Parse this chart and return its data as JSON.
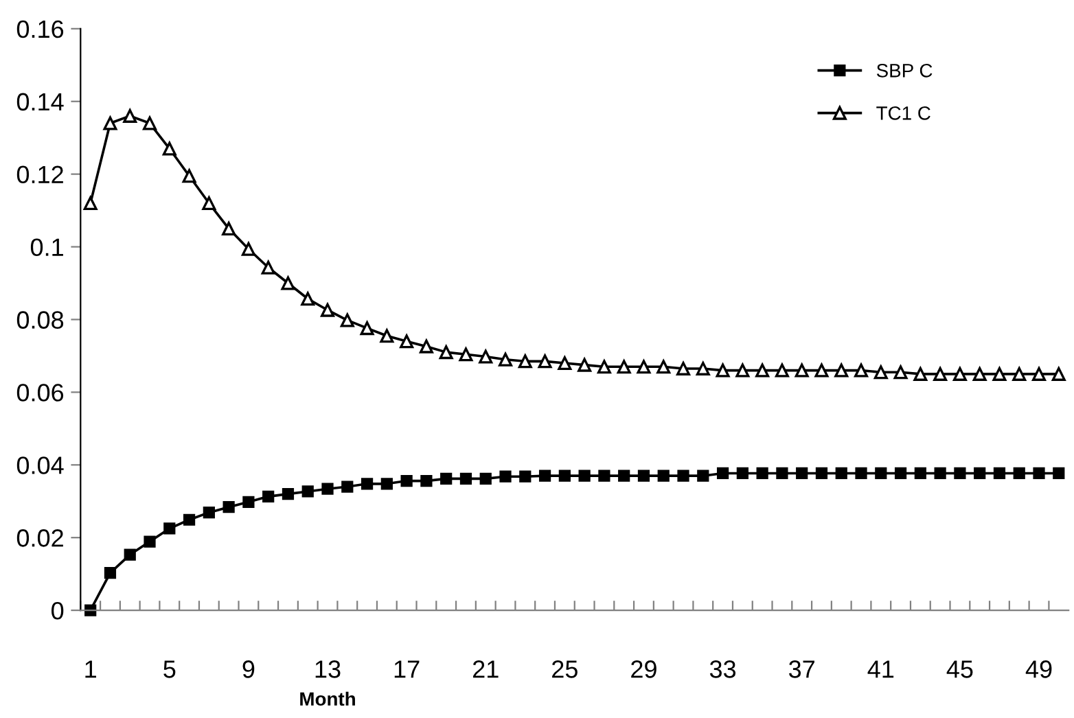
{
  "chart_data": {
    "type": "line",
    "xlabel": "Month",
    "categories": [
      "1",
      null,
      null,
      null,
      "5",
      null,
      null,
      null,
      "9",
      null,
      null,
      null,
      "13",
      null,
      null,
      null,
      "17",
      null,
      null,
      null,
      "21",
      null,
      null,
      null,
      "25",
      null,
      null,
      null,
      "29",
      null,
      null,
      null,
      "33",
      null,
      null,
      null,
      "37",
      null,
      null,
      null,
      "41",
      null,
      null,
      null,
      "45",
      null,
      null,
      null,
      "49",
      null
    ],
    "series": [
      {
        "name": "SBP C",
        "color": "#000000",
        "marker": "square",
        "values": [
          0,
          0.0103,
          0.0153,
          0.0189,
          0.0225,
          0.0249,
          0.0269,
          0.0284,
          0.0298,
          0.0313,
          0.032,
          0.0327,
          0.0334,
          0.034,
          0.0348,
          0.0348,
          0.0356,
          0.0356,
          0.0362,
          0.0362,
          0.0362,
          0.0368,
          0.0368,
          0.037,
          0.037,
          0.037,
          0.037,
          0.037,
          0.037,
          0.037,
          0.037,
          0.037,
          0.0377,
          0.0377,
          0.0377,
          0.0377,
          0.0377,
          0.0377,
          0.0377,
          0.0377,
          0.0377,
          0.0377,
          0.0377,
          0.0377,
          0.0377,
          0.0377,
          0.0377,
          0.0377,
          0.0377,
          0.0377
        ]
      },
      {
        "name": "TC1 C",
        "color": "#000000",
        "marker": "triangle",
        "values": [
          0.112,
          0.134,
          0.136,
          0.134,
          0.127,
          0.1195,
          0.112,
          0.105,
          0.0994,
          0.0943,
          0.09,
          0.0857,
          0.0826,
          0.0798,
          0.0776,
          0.0755,
          0.074,
          0.0726,
          0.071,
          0.0704,
          0.0698,
          0.069,
          0.0685,
          0.0685,
          0.068,
          0.0675,
          0.067,
          0.067,
          0.067,
          0.067,
          0.0665,
          0.0665,
          0.066,
          0.066,
          0.066,
          0.066,
          0.066,
          0.066,
          0.066,
          0.066,
          0.0655,
          0.0655,
          0.065,
          0.065,
          0.065,
          0.065,
          0.065,
          0.065,
          0.065,
          0.065
        ]
      }
    ],
    "ylim": [
      0,
      0.16
    ],
    "yticks": [
      0,
      0.02,
      0.04,
      0.06,
      0.08,
      0.1,
      0.12,
      0.14,
      0.16
    ],
    "grid": false,
    "legend": "top right",
    "line_style": "solid"
  }
}
